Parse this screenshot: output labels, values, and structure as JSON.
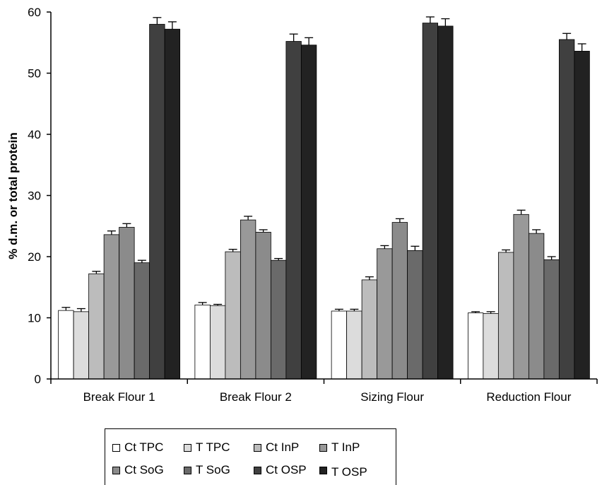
{
  "chart_data": {
    "type": "bar",
    "title": "",
    "xlabel": "",
    "ylabel": "% d.m. or total protein",
    "ylim": [
      0,
      60
    ],
    "yticks": [
      0,
      10,
      20,
      30,
      40,
      50,
      60
    ],
    "grid": false,
    "legend_position": "bottom",
    "categories": [
      "Break Flour 1",
      "Break Flour 2",
      "Sizing Flour",
      "Reduction Flour"
    ],
    "series": [
      {
        "name": "Ct TPC",
        "color": "#ffffff",
        "values": [
          11.2,
          12.1,
          11.1,
          10.8
        ],
        "errors": [
          0.5,
          0.4,
          0.3,
          0.2
        ]
      },
      {
        "name": "T TPC",
        "color": "#dcdcdc",
        "values": [
          11.0,
          12.0,
          11.1,
          10.7
        ],
        "errors": [
          0.5,
          0.2,
          0.3,
          0.3
        ]
      },
      {
        "name": "Ct InP",
        "color": "#bcbcbc",
        "values": [
          17.2,
          20.8,
          16.2,
          20.7
        ],
        "errors": [
          0.4,
          0.4,
          0.5,
          0.4
        ]
      },
      {
        "name": "T InP",
        "color": "#999999",
        "values": [
          23.6,
          26.0,
          21.3,
          26.9
        ],
        "errors": [
          0.6,
          0.6,
          0.5,
          0.7
        ]
      },
      {
        "name": "Ct SoG",
        "color": "#8b8b8b",
        "values": [
          24.8,
          24.0,
          25.6,
          23.8
        ],
        "errors": [
          0.6,
          0.4,
          0.6,
          0.6
        ]
      },
      {
        "name": "T SoG",
        "color": "#6a6a6a",
        "values": [
          19.0,
          19.4,
          21.0,
          19.5
        ],
        "errors": [
          0.4,
          0.3,
          0.7,
          0.5
        ]
      },
      {
        "name": "Ct OSP",
        "color": "#404040",
        "values": [
          58.0,
          55.2,
          58.2,
          55.5
        ],
        "errors": [
          1.1,
          1.2,
          1.0,
          1.0
        ]
      },
      {
        "name": "T OSP",
        "color": "#222222",
        "values": [
          57.2,
          54.6,
          57.7,
          53.6
        ],
        "errors": [
          1.2,
          1.2,
          1.2,
          1.2
        ]
      }
    ]
  }
}
